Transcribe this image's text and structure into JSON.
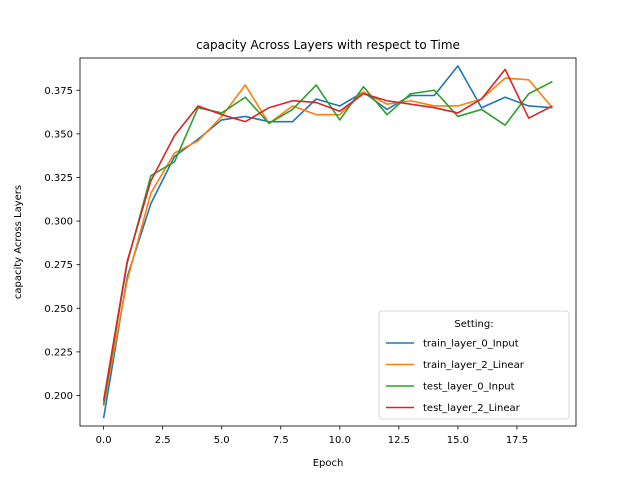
{
  "chart_data": {
    "type": "line",
    "title": "capacity Across Layers with respect to Time",
    "xlabel": "Epoch",
    "ylabel": "capacity Across Layers",
    "xlim": [
      -1.0,
      20.0
    ],
    "ylim": [
      0.1825,
      0.3935
    ],
    "xticks": [
      "0.0",
      "2.5",
      "5.0",
      "7.5",
      "10.0",
      "12.5",
      "15.0",
      "17.5"
    ],
    "xtick_values": [
      0,
      2.5,
      5,
      7.5,
      10,
      12.5,
      15,
      17.5
    ],
    "yticks": [
      "0.200",
      "0.225",
      "0.250",
      "0.275",
      "0.300",
      "0.325",
      "0.350",
      "0.375"
    ],
    "ytick_values": [
      0.2,
      0.225,
      0.25,
      0.275,
      0.3,
      0.325,
      0.35,
      0.375
    ],
    "grid": false,
    "legend": {
      "title": "Setting:",
      "placement": "lower right"
    },
    "x": [
      0,
      1,
      2,
      3,
      4,
      5,
      6,
      7,
      8,
      9,
      10,
      11,
      12,
      13,
      14,
      15,
      16,
      17,
      18,
      19
    ],
    "series": [
      {
        "name": "train_layer_0_Input",
        "color": "#1f77b4",
        "values": [
          0.187,
          0.268,
          0.31,
          0.337,
          0.347,
          0.358,
          0.36,
          0.357,
          0.357,
          0.37,
          0.366,
          0.374,
          0.364,
          0.372,
          0.372,
          0.389,
          0.365,
          0.371,
          0.366,
          0.365
        ]
      },
      {
        "name": "train_layer_2_Linear",
        "color": "#ff7f0e",
        "values": [
          0.194,
          0.266,
          0.316,
          0.339,
          0.346,
          0.36,
          0.378,
          0.356,
          0.366,
          0.361,
          0.361,
          0.374,
          0.367,
          0.369,
          0.366,
          0.366,
          0.37,
          0.382,
          0.381,
          0.365
        ]
      },
      {
        "name": "test_layer_0_Input",
        "color": "#2ca02c",
        "values": [
          0.195,
          0.276,
          0.326,
          0.334,
          0.365,
          0.362,
          0.371,
          0.356,
          0.364,
          0.378,
          0.358,
          0.377,
          0.361,
          0.373,
          0.375,
          0.36,
          0.364,
          0.355,
          0.373,
          0.38
        ]
      },
      {
        "name": "test_layer_2_Linear",
        "color": "#d62728",
        "values": [
          0.197,
          0.277,
          0.323,
          0.349,
          0.366,
          0.361,
          0.357,
          0.365,
          0.369,
          0.368,
          0.363,
          0.373,
          0.369,
          0.367,
          0.365,
          0.362,
          0.37,
          0.387,
          0.359,
          0.366
        ]
      }
    ]
  }
}
